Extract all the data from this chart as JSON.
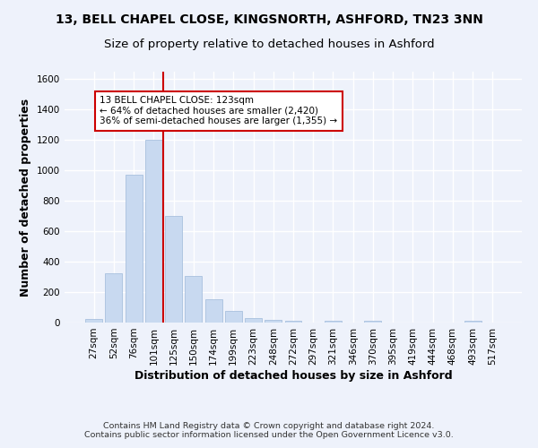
{
  "title1": "13, BELL CHAPEL CLOSE, KINGSNORTH, ASHFORD, TN23 3NN",
  "title2": "Size of property relative to detached houses in Ashford",
  "xlabel": "Distribution of detached houses by size in Ashford",
  "ylabel": "Number of detached properties",
  "footnote1": "Contains HM Land Registry data © Crown copyright and database right 2024.",
  "footnote2": "Contains public sector information licensed under the Open Government Licence v3.0.",
  "bar_labels": [
    "27sqm",
    "52sqm",
    "76sqm",
    "101sqm",
    "125sqm",
    "150sqm",
    "174sqm",
    "199sqm",
    "223sqm",
    "248sqm",
    "272sqm",
    "297sqm",
    "321sqm",
    "346sqm",
    "370sqm",
    "395sqm",
    "419sqm",
    "444sqm",
    "468sqm",
    "493sqm",
    "517sqm"
  ],
  "bar_values": [
    25,
    325,
    970,
    1200,
    700,
    305,
    155,
    75,
    30,
    20,
    12,
    0,
    10,
    0,
    12,
    0,
    0,
    0,
    0,
    10,
    0
  ],
  "bar_color": "#c8d9f0",
  "bar_edgecolor": "#a8c0de",
  "vline_color": "#cc0000",
  "annotation_line1": "13 BELL CHAPEL CLOSE: 123sqm",
  "annotation_line2": "← 64% of detached houses are smaller (2,420)",
  "annotation_line3": "36% of semi-detached houses are larger (1,355) →",
  "annotation_box_color": "#ffffff",
  "annotation_box_edgecolor": "#cc0000",
  "ylim": [
    0,
    1650
  ],
  "yticks": [
    0,
    200,
    400,
    600,
    800,
    1000,
    1200,
    1400,
    1600
  ],
  "bg_color": "#eef2fb",
  "grid_color": "#ffffff",
  "title1_fontsize": 10,
  "title2_fontsize": 9.5,
  "axis_label_fontsize": 9,
  "tick_fontsize": 7.5,
  "footnote_fontsize": 6.8
}
